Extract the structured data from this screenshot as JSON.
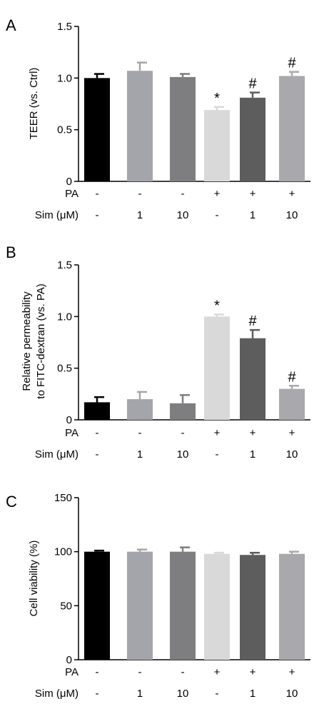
{
  "chart_data": [
    {
      "type": "bar",
      "panel_label": "A",
      "ylabel": [
        "TEER (vs. Ctrl)"
      ],
      "ylim": [
        0,
        1.5
      ],
      "yticks": [
        "0",
        "0.5",
        "1.0",
        "1.5"
      ],
      "yticks_values": [
        0,
        0.5,
        1.0,
        1.5
      ],
      "values": [
        1.0,
        1.07,
        1.01,
        0.69,
        0.81,
        1.02
      ],
      "errors": [
        0.04,
        0.08,
        0.03,
        0.03,
        0.05,
        0.04
      ],
      "annotations": [
        "",
        "",
        "",
        "*",
        "#",
        "#"
      ],
      "colors": [
        "#000000",
        "#a4a4ab",
        "#7e7e80",
        "#d9d9d9",
        "#5d5d5e",
        "#a8a8ad"
      ],
      "conditions": [
        {
          "label": "PA",
          "values": [
            "-",
            "-",
            "-",
            "+",
            "+",
            "+"
          ]
        },
        {
          "label": "Sim (μM)",
          "values": [
            "-",
            "1",
            "10",
            "-",
            "1",
            "10"
          ]
        }
      ]
    },
    {
      "type": "bar",
      "panel_label": "B",
      "ylabel": [
        "Relative permeability",
        "to FITC-dextran (vs. PA)"
      ],
      "ylim": [
        0,
        1.5
      ],
      "yticks": [
        "0",
        "0.5",
        "1.0",
        "1.5"
      ],
      "yticks_values": [
        0,
        0.5,
        1.0,
        1.5
      ],
      "values": [
        0.17,
        0.2,
        0.16,
        1.0,
        0.79,
        0.3
      ],
      "errors": [
        0.05,
        0.07,
        0.08,
        0.02,
        0.08,
        0.03
      ],
      "annotations": [
        "",
        "",
        "",
        "*",
        "#",
        "#"
      ],
      "colors": [
        "#000000",
        "#a4a4ab",
        "#7e7e80",
        "#d9d9d9",
        "#5d5d5e",
        "#a8a8ad"
      ],
      "conditions": [
        {
          "label": "PA",
          "values": [
            "-",
            "-",
            "-",
            "+",
            "+",
            "+"
          ]
        },
        {
          "label": "Sim (μM)",
          "values": [
            "-",
            "1",
            "10",
            "-",
            "1",
            "10"
          ]
        }
      ]
    },
    {
      "type": "bar",
      "panel_label": "C",
      "ylabel": [
        "Cell viability (%)"
      ],
      "ylim": [
        0,
        150
      ],
      "yticks": [
        "0",
        "50",
        "100",
        "150"
      ],
      "yticks_values": [
        0,
        50,
        100,
        150
      ],
      "values": [
        100,
        100,
        100,
        98,
        97,
        98
      ],
      "errors": [
        1,
        2,
        4,
        1,
        2,
        2
      ],
      "annotations": [
        "",
        "",
        "",
        "",
        "",
        ""
      ],
      "colors": [
        "#000000",
        "#a4a4ab",
        "#7e7e80",
        "#d9d9d9",
        "#5d5d5e",
        "#a8a8ad"
      ],
      "conditions": [
        {
          "label": "PA",
          "values": [
            "-",
            "-",
            "-",
            "+",
            "+",
            "+"
          ]
        },
        {
          "label": "Sim (μM)",
          "values": [
            "-",
            "1",
            "10",
            "-",
            "1",
            "10"
          ]
        }
      ]
    }
  ]
}
